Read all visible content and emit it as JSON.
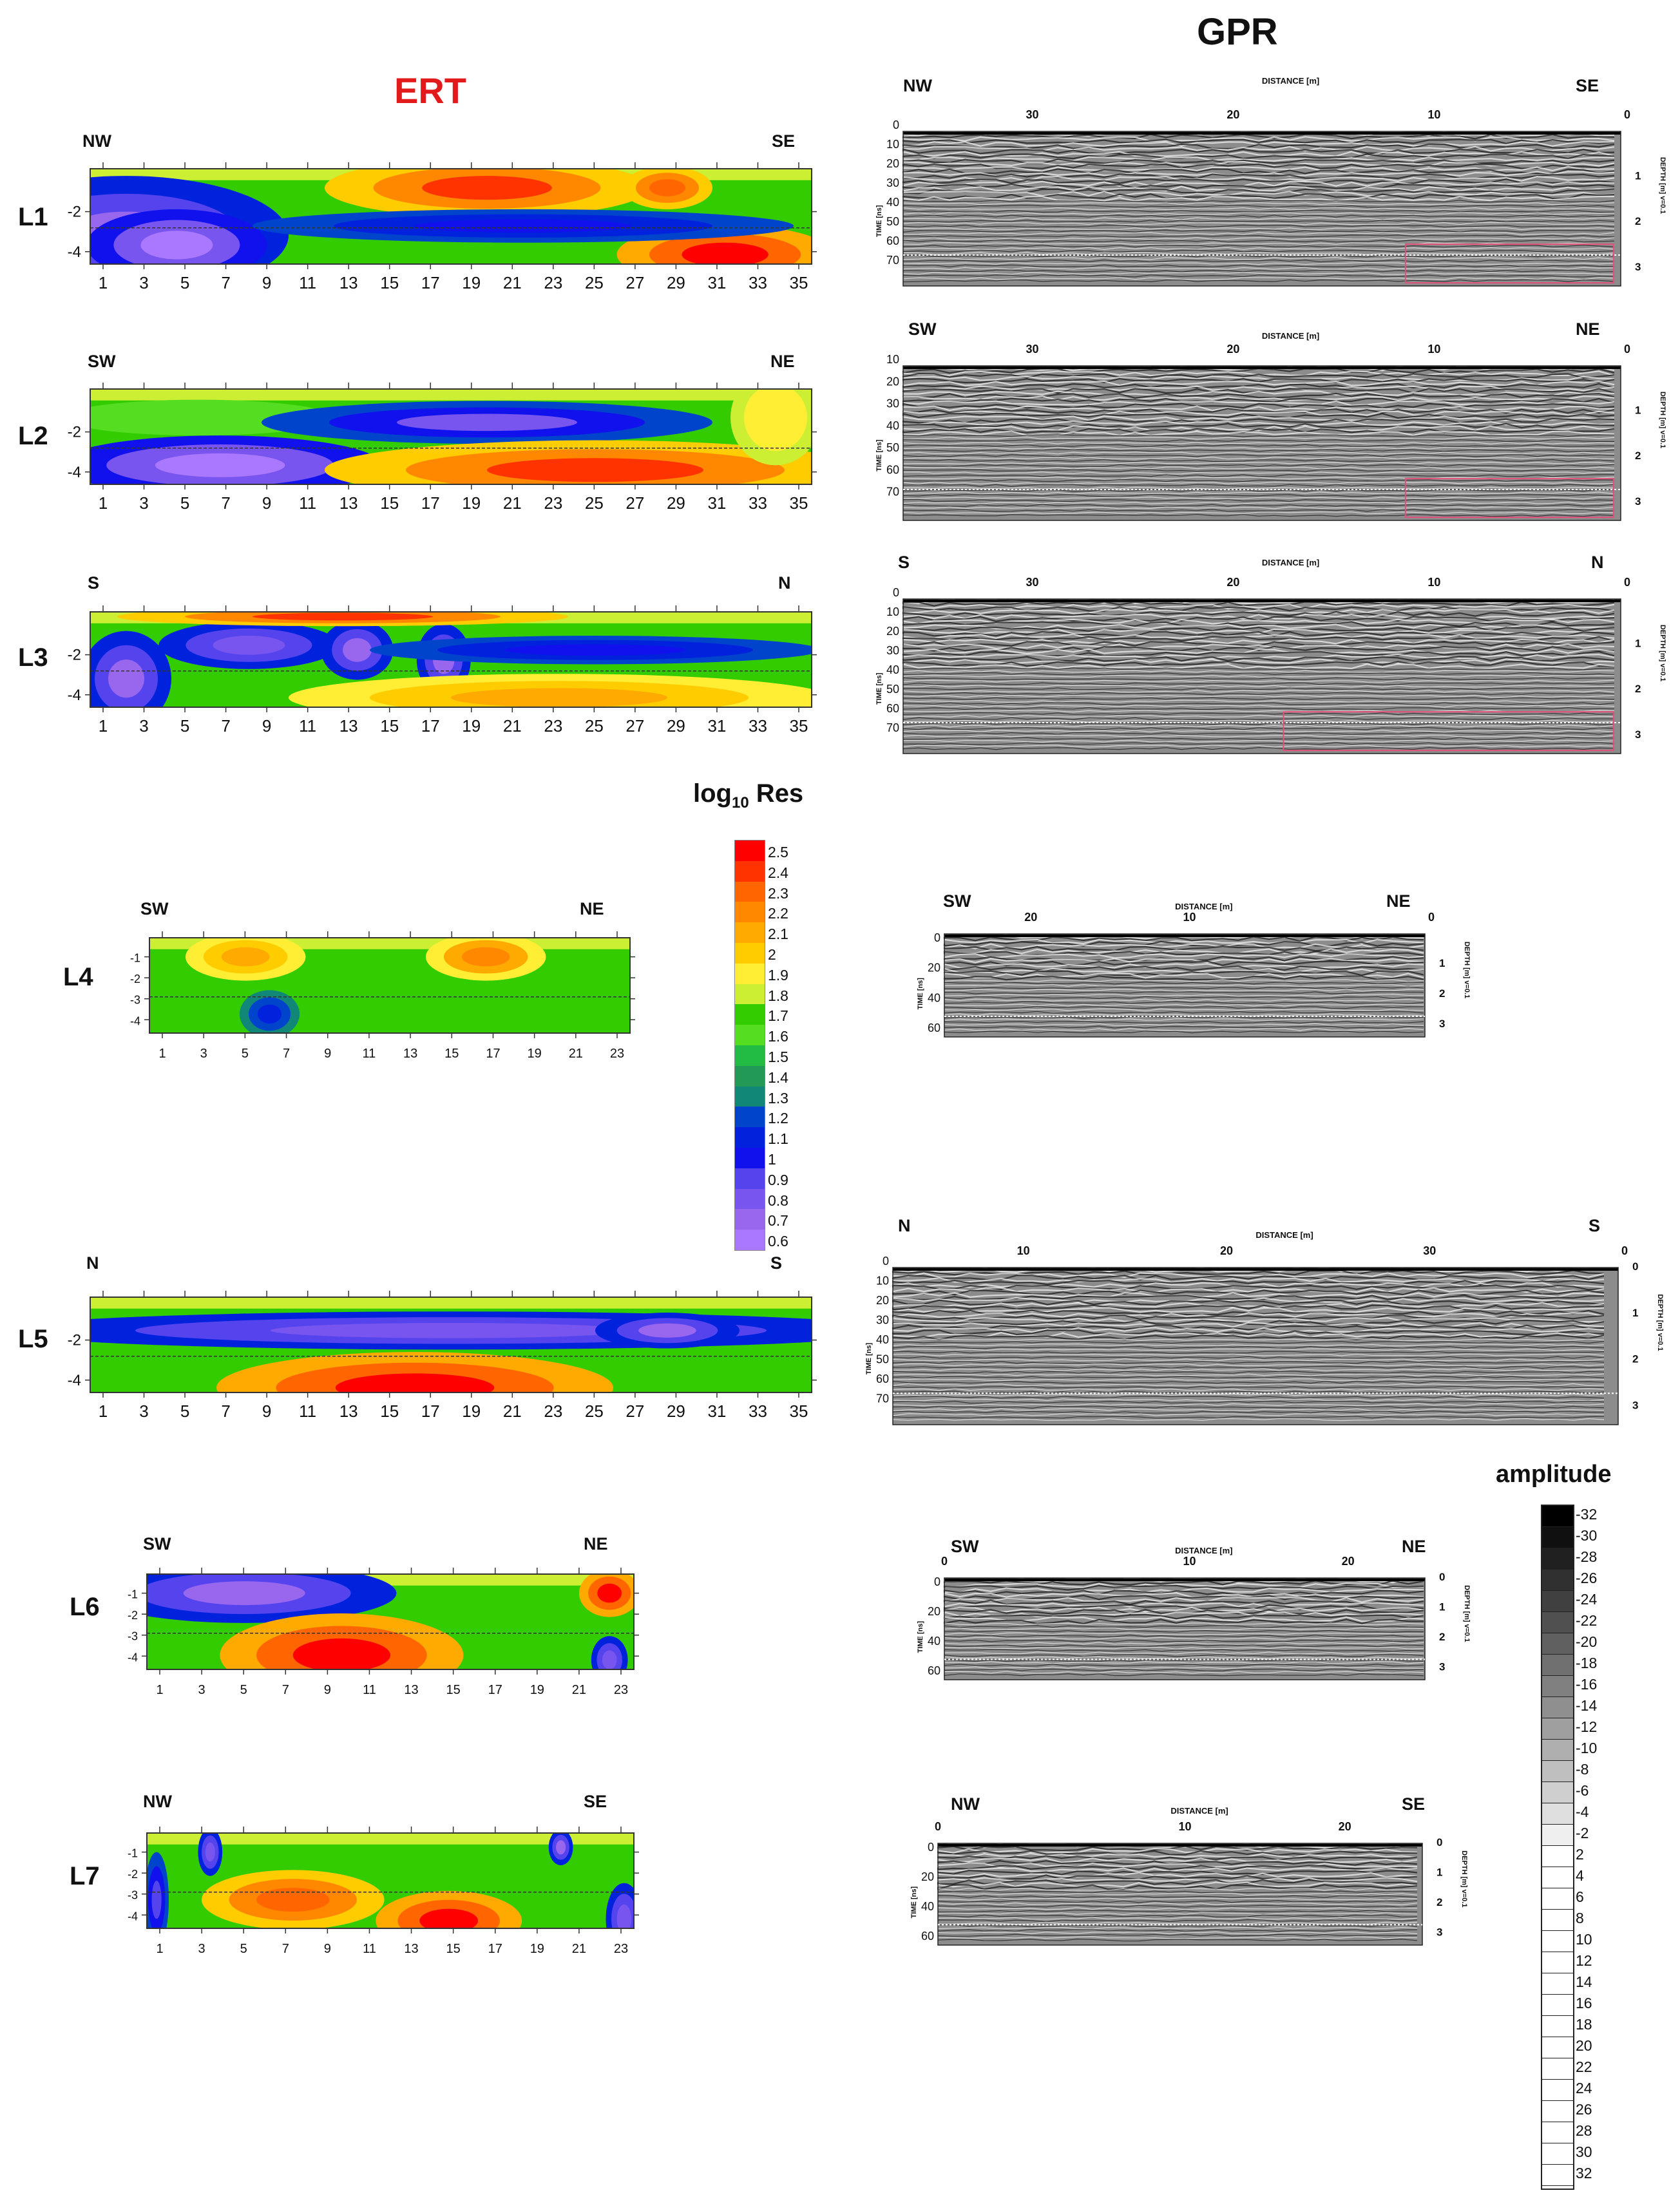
{
  "header": {
    "ert_title": "ERT",
    "gpr_title": "GPR"
  },
  "colors": {
    "ert_title": "#e31a1c",
    "marker_box": "#e0507a",
    "dotted_box": "#ffffff",
    "gpr_background": "#8c8c8c"
  },
  "lines": [
    {
      "label": "L1",
      "left_dir": "NW",
      "right_dir": "SE",
      "ert_x_ticks": [
        "1",
        "3",
        "5",
        "7",
        "9",
        "11",
        "13",
        "15",
        "17",
        "19",
        "21",
        "23",
        "25",
        "27",
        "29",
        "31",
        "33",
        "35"
      ],
      "ert_y_ticks": [
        "-2",
        "-4"
      ],
      "gpr_axis_title": "DISTANCE [m]",
      "gpr_x_ticks": [
        "30",
        "20",
        "10",
        "0"
      ],
      "gpr_time_label": "TIME [ns]",
      "gpr_y_ticks": [
        "0",
        "10",
        "20",
        "30",
        "40",
        "50",
        "60",
        "70"
      ],
      "gpr_depth_label": "DEPTH [m] v=0.1",
      "gpr_depth_ticks": [
        "1",
        "2",
        "3"
      ]
    },
    {
      "label": "L2",
      "left_dir": "SW",
      "right_dir": "NE",
      "ert_x_ticks": [
        "1",
        "3",
        "5",
        "7",
        "9",
        "11",
        "13",
        "15",
        "17",
        "19",
        "21",
        "23",
        "25",
        "27",
        "29",
        "31",
        "33",
        "35"
      ],
      "ert_y_ticks": [
        "-2",
        "-4"
      ],
      "gpr_axis_title": "DISTANCE [m]",
      "gpr_x_ticks": [
        "30",
        "20",
        "10",
        "0"
      ],
      "gpr_time_label": "TIME [ns]",
      "gpr_y_ticks": [
        "10",
        "20",
        "30",
        "40",
        "50",
        "60",
        "70"
      ],
      "gpr_depth_label": "DEPTH [m] v=0.1",
      "gpr_depth_ticks": [
        "1",
        "2",
        "3"
      ]
    },
    {
      "label": "L3",
      "left_dir": "S",
      "right_dir": "N",
      "ert_x_ticks": [
        "1",
        "3",
        "5",
        "7",
        "9",
        "11",
        "13",
        "15",
        "17",
        "19",
        "21",
        "23",
        "25",
        "27",
        "29",
        "31",
        "33",
        "35"
      ],
      "ert_y_ticks": [
        "-2",
        "-4"
      ],
      "gpr_axis_title": "DISTANCE [m]",
      "gpr_x_ticks": [
        "30",
        "20",
        "10",
        "0"
      ],
      "gpr_time_label": "TIME [ns]",
      "gpr_y_ticks": [
        "0",
        "10",
        "20",
        "30",
        "40",
        "50",
        "60",
        "70"
      ],
      "gpr_depth_label": "DEPTH [m] v=0.1",
      "gpr_depth_ticks": [
        "1",
        "2",
        "3"
      ]
    },
    {
      "label": "L4",
      "left_dir": "SW",
      "right_dir": "NE",
      "ert_x_ticks": [
        "1",
        "3",
        "5",
        "7",
        "9",
        "11",
        "13",
        "15",
        "17",
        "19",
        "21",
        "23"
      ],
      "ert_y_ticks": [
        "-1",
        "-2",
        "-3",
        "-4"
      ],
      "gpr_axis_title": "DISTANCE [m]",
      "gpr_x_ticks": [
        "20",
        "10",
        "0"
      ],
      "gpr_time_label": "TIME [ns]",
      "gpr_y_ticks": [
        "0",
        "20",
        "40",
        "60"
      ],
      "gpr_depth_label": "DEPTH [m] v=0.1",
      "gpr_depth_ticks": [
        "1",
        "2",
        "3"
      ]
    },
    {
      "label": "L5",
      "left_dir": "N",
      "right_dir": "S",
      "ert_x_ticks": [
        "1",
        "3",
        "5",
        "7",
        "9",
        "11",
        "13",
        "15",
        "17",
        "19",
        "21",
        "23",
        "25",
        "27",
        "29",
        "31",
        "33",
        "35"
      ],
      "ert_y_ticks": [
        "-2",
        "-4"
      ],
      "gpr_axis_title": "DISTANCE [m]",
      "gpr_x_ticks": [
        "10",
        "20",
        "30",
        "0"
      ],
      "gpr_time_label": "TIME [ns]",
      "gpr_y_ticks": [
        "0",
        "10",
        "20",
        "30",
        "40",
        "50",
        "60",
        "70"
      ],
      "gpr_depth_label": "DEPTH [m] v=0.1",
      "gpr_depth_ticks": [
        "0",
        "1",
        "2",
        "3"
      ]
    },
    {
      "label": "L6",
      "left_dir": "SW",
      "right_dir": "NE",
      "ert_x_ticks": [
        "1",
        "3",
        "5",
        "7",
        "9",
        "11",
        "13",
        "15",
        "17",
        "19",
        "21",
        "23"
      ],
      "ert_y_ticks": [
        "-1",
        "-2",
        "-3",
        "-4"
      ],
      "gpr_axis_title": "DISTANCE [m]",
      "gpr_x_ticks": [
        "0",
        "10",
        "20"
      ],
      "gpr_time_label": "TIME [ns]",
      "gpr_y_ticks": [
        "0",
        "20",
        "40",
        "60"
      ],
      "gpr_depth_label": "DEPTH [m] v=0.1",
      "gpr_depth_ticks": [
        "0",
        "1",
        "2",
        "3"
      ]
    },
    {
      "label": "L7",
      "left_dir": "NW",
      "right_dir": "SE",
      "ert_x_ticks": [
        "1",
        "3",
        "5",
        "7",
        "9",
        "11",
        "13",
        "15",
        "17",
        "19",
        "21",
        "23"
      ],
      "ert_y_ticks": [
        "-1",
        "-2",
        "-3",
        "-4"
      ],
      "gpr_axis_title": "DISTANCE [m]",
      "gpr_x_ticks": [
        "0",
        "10",
        "20"
      ],
      "gpr_time_label": "TIME [ns]",
      "gpr_y_ticks": [
        "0",
        "20",
        "40",
        "60"
      ],
      "gpr_depth_label": "DEPTH [m] v=0.1",
      "gpr_depth_ticks": [
        "0",
        "1",
        "2",
        "3"
      ]
    }
  ],
  "resistivity_legend": {
    "title": "log10 Res",
    "title_main": "log",
    "title_sub": "10",
    "title_tail": " Res",
    "values": [
      "2.5",
      "2.4",
      "2.3",
      "2.2",
      "2.1",
      "2",
      "1.9",
      "1.8",
      "1.7",
      "1.6",
      "1.5",
      "1.4",
      "1.3",
      "1.2",
      "1.1",
      "1",
      "0.9",
      "0.8",
      "0.7",
      "0.6"
    ],
    "colors": [
      "#ff0000",
      "#ff3300",
      "#ff6600",
      "#ff8800",
      "#ffaa00",
      "#ffcc00",
      "#ffee33",
      "#ccee33",
      "#33cc00",
      "#55dd22",
      "#22bb44",
      "#229955",
      "#118877",
      "#0044cc",
      "#0022dd",
      "#1111ee",
      "#5544ee",
      "#7755ee",
      "#9966ee",
      "#aa77ff"
    ]
  },
  "amplitude_legend": {
    "title": "amplitude",
    "values": [
      "-32",
      "-30",
      "-28",
      "-26",
      "-24",
      "-22",
      "-20",
      "-18",
      "-16",
      "-14",
      "-12",
      "-10",
      "-8",
      "-6",
      "-4",
      "-2",
      "2",
      "4",
      "6",
      "8",
      "10",
      "12",
      "14",
      "16",
      "18",
      "20",
      "22",
      "24",
      "26",
      "28",
      "30",
      "32"
    ]
  },
  "chart_data": {
    "type": "heatmap",
    "ert_y_unit": "depth (m)",
    "gpr_x_unit": "DISTANCE [m]",
    "gpr_y_unit": "TIME [ns]",
    "ert_color_scale": {
      "label": "log10 Res",
      "min": 0.6,
      "max": 2.5
    },
    "gpr_color_scale": {
      "label": "amplitude",
      "min": -32,
      "max": 32
    }
  }
}
